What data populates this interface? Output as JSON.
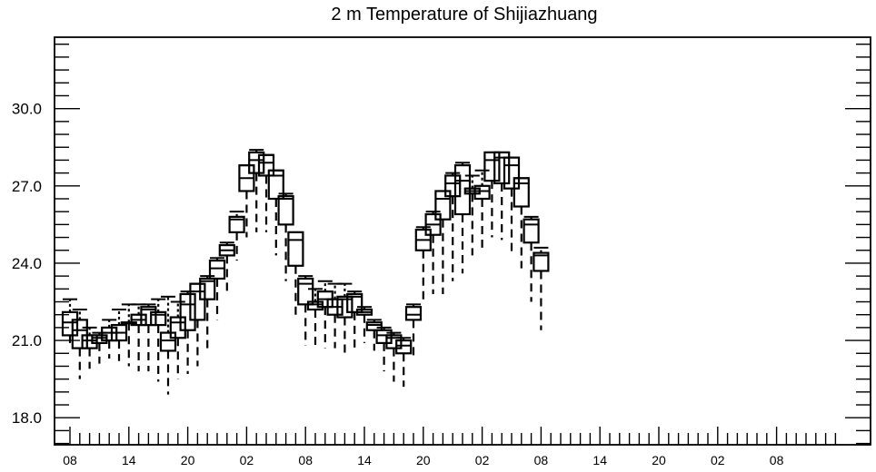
{
  "chart_data": {
    "type": "box",
    "title": "2 m Temperature of Shijiazhuang",
    "xlabel": "",
    "ylabel": "",
    "ylim": [
      17.0,
      32.6
    ],
    "x_range": [
      0,
      78
    ],
    "y_ticks": [
      18.0,
      21.0,
      24.0,
      27.0,
      30.0
    ],
    "y_tick_labels": [
      "18.0",
      "21.0",
      "24.0",
      "27.0",
      "30.0"
    ],
    "y_minor_step": 0.5,
    "x_ticks": [
      0,
      6,
      12,
      18,
      24,
      30,
      36,
      42,
      48,
      54,
      60,
      66,
      72
    ],
    "x_tick_labels": [
      "08",
      "14",
      "20",
      "02",
      "08",
      "14",
      "20",
      "02",
      "08",
      "14",
      "20",
      "02",
      "08"
    ],
    "x_minor_step": 1,
    "grid": false,
    "boxes": [
      {
        "x": 0,
        "min": 20.9,
        "q1": 21.2,
        "median": 21.7,
        "q3": 22.1,
        "max": 22.6
      },
      {
        "x": 1,
        "min": 19.5,
        "q1": 20.7,
        "median": 21.4,
        "q3": 21.8,
        "max": 22.2
      },
      {
        "x": 2,
        "min": 19.9,
        "q1": 20.7,
        "median": 21.0,
        "q3": 21.2,
        "max": 21.5
      },
      {
        "x": 3,
        "min": 20.1,
        "q1": 20.9,
        "median": 21.1,
        "q3": 21.2,
        "max": 21.3
      },
      {
        "x": 4,
        "min": 20.3,
        "q1": 21.0,
        "median": 21.3,
        "q3": 21.5,
        "max": 21.8
      },
      {
        "x": 5,
        "min": 20.2,
        "q1": 21.0,
        "median": 21.3,
        "q3": 21.6,
        "max": 22.2
      },
      {
        "x": 6,
        "min": 20.0,
        "q1": 21.7,
        "median": 21.7,
        "q3": 21.7,
        "max": 22.4
      },
      {
        "x": 7,
        "min": 19.8,
        "q1": 21.6,
        "median": 21.8,
        "q3": 22.0,
        "max": 22.4
      },
      {
        "x": 8,
        "min": 19.8,
        "q1": 21.6,
        "median": 22.2,
        "q3": 22.3,
        "max": 22.4
      },
      {
        "x": 9,
        "min": 19.4,
        "q1": 21.6,
        "median": 22.0,
        "q3": 22.1,
        "max": 22.6
      },
      {
        "x": 10,
        "min": 18.9,
        "q1": 20.6,
        "median": 21.0,
        "q3": 21.3,
        "max": 22.7
      },
      {
        "x": 11,
        "min": 19.5,
        "q1": 21.1,
        "median": 21.7,
        "q3": 21.9,
        "max": 22.5
      },
      {
        "x": 12,
        "min": 19.7,
        "q1": 21.4,
        "median": 22.4,
        "q3": 22.8,
        "max": 22.9
      },
      {
        "x": 13,
        "min": 20.0,
        "q1": 21.8,
        "median": 22.9,
        "q3": 23.2,
        "max": 23.2
      },
      {
        "x": 14,
        "min": 20.7,
        "q1": 22.6,
        "median": 23.3,
        "q3": 23.4,
        "max": 23.5
      },
      {
        "x": 15,
        "min": 21.8,
        "q1": 23.4,
        "median": 23.8,
        "q3": 24.1,
        "max": 24.2
      },
      {
        "x": 16,
        "min": 22.8,
        "q1": 24.3,
        "median": 24.5,
        "q3": 24.7,
        "max": 24.8
      },
      {
        "x": 17,
        "min": 24.1,
        "q1": 25.2,
        "median": 25.7,
        "q3": 25.8,
        "max": 26.0
      },
      {
        "x": 18,
        "min": 25.0,
        "q1": 26.8,
        "median": 27.3,
        "q3": 27.8,
        "max": 27.8
      },
      {
        "x": 19,
        "min": 25.2,
        "q1": 27.5,
        "median": 28.0,
        "q3": 28.3,
        "max": 28.4
      },
      {
        "x": 20,
        "min": 25.2,
        "q1": 27.4,
        "median": 27.9,
        "q3": 28.2,
        "max": 28.2
      },
      {
        "x": 21,
        "min": 24.3,
        "q1": 26.5,
        "median": 27.4,
        "q3": 27.6,
        "max": 27.6
      },
      {
        "x": 22,
        "min": 23.3,
        "q1": 25.5,
        "median": 26.5,
        "q3": 26.6,
        "max": 26.7
      },
      {
        "x": 23,
        "min": 22.0,
        "q1": 23.9,
        "median": 24.9,
        "q3": 25.2,
        "max": 25.2
      },
      {
        "x": 24,
        "min": 20.8,
        "q1": 22.4,
        "median": 23.2,
        "q3": 23.4,
        "max": 23.5
      },
      {
        "x": 25,
        "min": 20.8,
        "q1": 22.2,
        "median": 22.4,
        "q3": 22.5,
        "max": 23.0
      },
      {
        "x": 26,
        "min": 20.7,
        "q1": 22.3,
        "median": 22.6,
        "q3": 22.9,
        "max": 23.3
      },
      {
        "x": 27,
        "min": 20.7,
        "q1": 22.0,
        "median": 22.3,
        "q3": 22.6,
        "max": 23.2
      },
      {
        "x": 28,
        "min": 20.4,
        "q1": 21.9,
        "median": 22.6,
        "q3": 22.7,
        "max": 23.2
      },
      {
        "x": 29,
        "min": 20.7,
        "q1": 22.1,
        "median": 22.7,
        "q3": 22.8,
        "max": 22.9
      },
      {
        "x": 30,
        "min": 20.9,
        "q1": 22.0,
        "median": 22.1,
        "q3": 22.2,
        "max": 22.3
      },
      {
        "x": 31,
        "min": 20.6,
        "q1": 21.4,
        "median": 21.6,
        "q3": 21.7,
        "max": 21.8
      },
      {
        "x": 32,
        "min": 19.8,
        "q1": 20.9,
        "median": 21.2,
        "q3": 21.4,
        "max": 21.5
      },
      {
        "x": 33,
        "min": 19.4,
        "q1": 20.7,
        "median": 21.1,
        "q3": 21.2,
        "max": 21.3
      },
      {
        "x": 34,
        "min": 19.2,
        "q1": 20.5,
        "median": 20.8,
        "q3": 21.0,
        "max": 21.1
      },
      {
        "x": 35,
        "min": 20.4,
        "q1": 21.8,
        "median": 22.0,
        "q3": 22.3,
        "max": 22.4
      },
      {
        "x": 36,
        "min": 22.4,
        "q1": 24.5,
        "median": 24.9,
        "q3": 25.3,
        "max": 25.4
      },
      {
        "x": 37,
        "min": 22.8,
        "q1": 25.1,
        "median": 25.5,
        "q3": 25.9,
        "max": 26.0
      },
      {
        "x": 38,
        "min": 22.8,
        "q1": 25.7,
        "median": 26.5,
        "q3": 26.8,
        "max": 26.8
      },
      {
        "x": 39,
        "min": 23.3,
        "q1": 26.6,
        "median": 27.1,
        "q3": 27.4,
        "max": 27.5
      },
      {
        "x": 40,
        "min": 23.6,
        "q1": 25.9,
        "median": 27.2,
        "q3": 27.8,
        "max": 27.9
      },
      {
        "x": 41,
        "min": 24.3,
        "q1": 26.7,
        "median": 26.8,
        "q3": 26.9,
        "max": 27.4
      },
      {
        "x": 42,
        "min": 24.6,
        "q1": 26.5,
        "median": 26.8,
        "q3": 27.0,
        "max": 27.6
      },
      {
        "x": 43,
        "min": 25.0,
        "q1": 27.2,
        "median": 28.0,
        "q3": 28.3,
        "max": 28.3
      },
      {
        "x": 44,
        "min": 24.9,
        "q1": 27.1,
        "median": 28.1,
        "q3": 28.3,
        "max": 28.3
      },
      {
        "x": 45,
        "min": 24.4,
        "q1": 26.9,
        "median": 27.8,
        "q3": 28.1,
        "max": 28.1
      },
      {
        "x": 46,
        "min": 23.8,
        "q1": 26.2,
        "median": 27.1,
        "q3": 27.3,
        "max": 27.3
      },
      {
        "x": 47,
        "min": 22.5,
        "q1": 24.8,
        "median": 25.5,
        "q3": 25.7,
        "max": 25.8
      },
      {
        "x": 48,
        "min": 21.4,
        "q1": 23.7,
        "median": 24.3,
        "q3": 24.4,
        "max": 24.6
      }
    ]
  }
}
